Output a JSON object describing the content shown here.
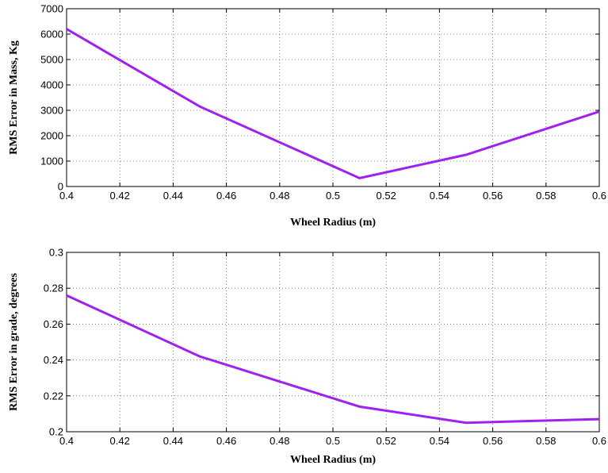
{
  "chart_data": [
    {
      "type": "line",
      "title": "",
      "xlabel": "Wheel Radius (m)",
      "ylabel": "RMS Error in Mass, Kg",
      "xlim": [
        0.4,
        0.6
      ],
      "ylim": [
        0,
        7000
      ],
      "xticks": [
        "0.4",
        "0.42",
        "0.44",
        "0.46",
        "0.48",
        "0.5",
        "0.52",
        "0.54",
        "0.56",
        "0.58",
        "0.6"
      ],
      "yticks": [
        "0",
        "1000",
        "2000",
        "3000",
        "4000",
        "5000",
        "6000",
        "7000"
      ],
      "grid": true,
      "color": "#a020f0",
      "series": [
        {
          "x": [
            0.4,
            0.45,
            0.51,
            0.55,
            0.6
          ],
          "y": [
            6200,
            3150,
            330,
            1250,
            2950
          ]
        }
      ]
    },
    {
      "type": "line",
      "title": "",
      "xlabel": "Wheel Radius (m)",
      "ylabel": "RMS Error in grade, degrees",
      "xlim": [
        0.4,
        0.6
      ],
      "ylim": [
        0.2,
        0.3
      ],
      "xticks": [
        "0.4",
        "0.42",
        "0.44",
        "0.46",
        "0.48",
        "0.5",
        "0.52",
        "0.54",
        "0.56",
        "0.58",
        "0.6"
      ],
      "yticks": [
        "0.2",
        "0.22",
        "0.24",
        "0.26",
        "0.28",
        "0.3"
      ],
      "grid": true,
      "color": "#a020f0",
      "series": [
        {
          "x": [
            0.4,
            0.45,
            0.51,
            0.55,
            0.6
          ],
          "y": [
            0.276,
            0.242,
            0.214,
            0.205,
            0.207
          ]
        }
      ]
    }
  ]
}
